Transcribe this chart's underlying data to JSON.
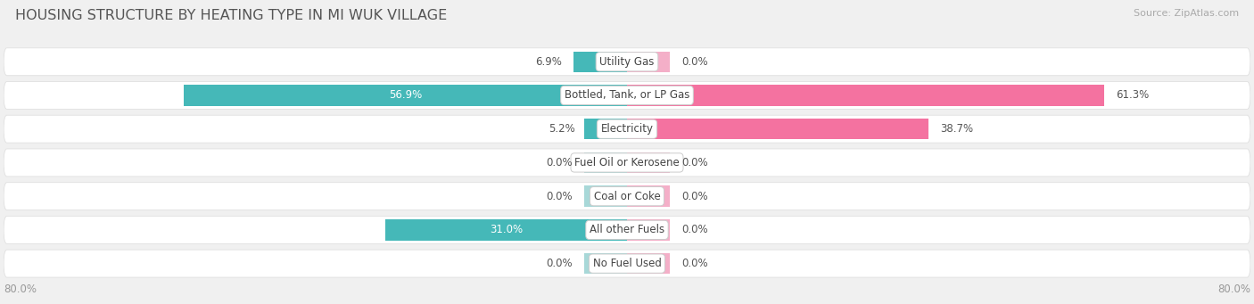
{
  "title": "HOUSING STRUCTURE BY HEATING TYPE IN MI WUK VILLAGE",
  "source": "Source: ZipAtlas.com",
  "categories": [
    "Utility Gas",
    "Bottled, Tank, or LP Gas",
    "Electricity",
    "Fuel Oil or Kerosene",
    "Coal or Coke",
    "All other Fuels",
    "No Fuel Used"
  ],
  "owner_values": [
    6.9,
    56.9,
    5.2,
    0.0,
    0.0,
    31.0,
    0.0
  ],
  "renter_values": [
    0.0,
    61.3,
    38.7,
    0.0,
    0.0,
    0.0,
    0.0
  ],
  "owner_color": "#45b8b8",
  "renter_color": "#f472a0",
  "owner_color_light": "#a8d8d8",
  "renter_color_light": "#f4afc8",
  "axis_max": 80.0,
  "axis_label_left": "80.0%",
  "axis_label_right": "80.0%",
  "background_color": "#f0f0f0",
  "row_bg_color": "#f8f8f8",
  "row_bg_border": "#e0e0e0",
  "title_fontsize": 11.5,
  "source_fontsize": 8,
  "label_fontsize": 8.5,
  "value_fontsize": 8.5,
  "cat_fontsize": 8.5,
  "bar_height": 0.62,
  "stub_size": 5.5
}
